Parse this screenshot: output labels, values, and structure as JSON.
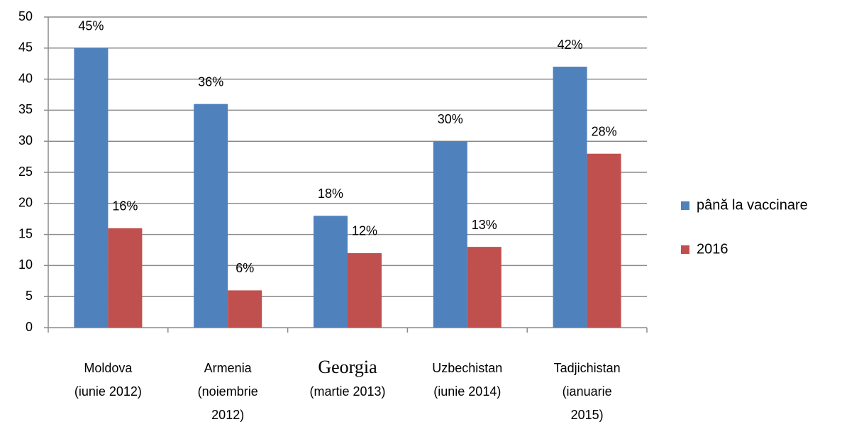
{
  "chart_data": {
    "type": "bar",
    "categories": [
      [
        "Moldova",
        "(iunie 2012)"
      ],
      [
        "Armenia",
        "(noiembrie",
        "2012)"
      ],
      [
        "Georgia",
        "(martie 2013)"
      ],
      [
        "Uzbechistan",
        "(iunie 2014)"
      ],
      [
        "Tadjichistan",
        "(ianuarie",
        "2015)"
      ]
    ],
    "series": [
      {
        "name": "până la vaccinare",
        "color": "#4f81bd",
        "values": [
          45,
          36,
          18,
          30,
          42
        ],
        "value_labels": [
          "45%",
          "36%",
          "18%",
          "30%",
          "42%"
        ]
      },
      {
        "name": "2016",
        "color": "#c0504d",
        "values": [
          16,
          6,
          12,
          13,
          28
        ],
        "value_labels": [
          "16%",
          "6%",
          "12%",
          "13%",
          "28%"
        ]
      }
    ],
    "ylim": [
      0,
      50
    ],
    "yticks": [
      0,
      5,
      10,
      15,
      20,
      25,
      30,
      35,
      40,
      45,
      50
    ],
    "grid": true,
    "legend": "right"
  }
}
